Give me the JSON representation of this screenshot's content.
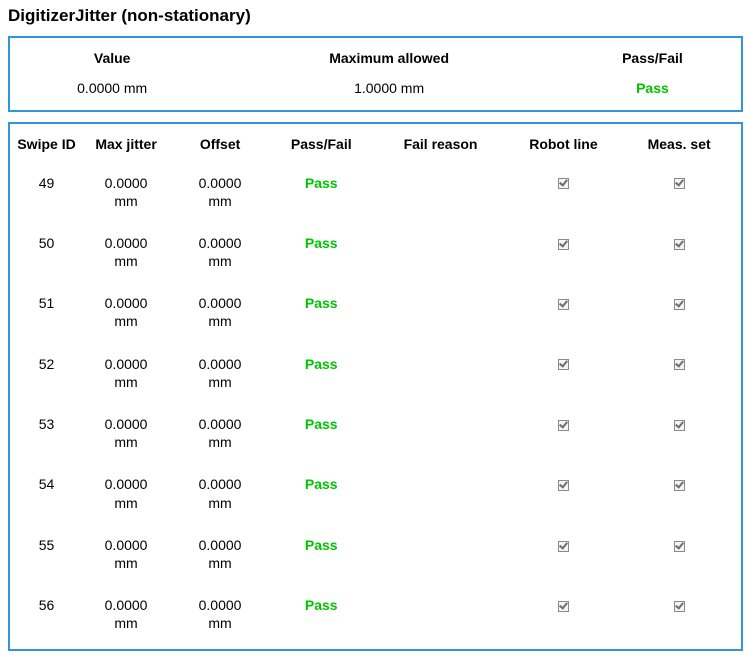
{
  "title": "DigitizerJitter (non-stationary)",
  "summary": {
    "headers": {
      "value": "Value",
      "max": "Maximum allowed",
      "pf": "Pass/Fail"
    },
    "value": "0.0000 mm",
    "max": "1.0000 mm",
    "pf": "Pass"
  },
  "columns": {
    "swipe_id": "Swipe ID",
    "max_jitter": "Max jitter",
    "offset": "Offset",
    "pass_fail": "Pass/Fail",
    "fail_reason": "Fail reason",
    "robot_line": "Robot line",
    "meas_set": "Meas. set"
  },
  "rows": [
    {
      "swipe_id": "49",
      "max_jitter": "0.0000 mm",
      "offset": "0.0000 mm",
      "pass_fail": "Pass",
      "fail_reason": "",
      "robot_line": true,
      "meas_set": true
    },
    {
      "swipe_id": "50",
      "max_jitter": "0.0000 mm",
      "offset": "0.0000 mm",
      "pass_fail": "Pass",
      "fail_reason": "",
      "robot_line": true,
      "meas_set": true
    },
    {
      "swipe_id": "51",
      "max_jitter": "0.0000 mm",
      "offset": "0.0000 mm",
      "pass_fail": "Pass",
      "fail_reason": "",
      "robot_line": true,
      "meas_set": true
    },
    {
      "swipe_id": "52",
      "max_jitter": "0.0000 mm",
      "offset": "0.0000 mm",
      "pass_fail": "Pass",
      "fail_reason": "",
      "robot_line": true,
      "meas_set": true
    },
    {
      "swipe_id": "53",
      "max_jitter": "0.0000 mm",
      "offset": "0.0000 mm",
      "pass_fail": "Pass",
      "fail_reason": "",
      "robot_line": true,
      "meas_set": true
    },
    {
      "swipe_id": "54",
      "max_jitter": "0.0000 mm",
      "offset": "0.0000 mm",
      "pass_fail": "Pass",
      "fail_reason": "",
      "robot_line": true,
      "meas_set": true
    },
    {
      "swipe_id": "55",
      "max_jitter": "0.0000 mm",
      "offset": "0.0000 mm",
      "pass_fail": "Pass",
      "fail_reason": "",
      "robot_line": true,
      "meas_set": true
    },
    {
      "swipe_id": "56",
      "max_jitter": "0.0000 mm",
      "offset": "0.0000 mm",
      "pass_fail": "Pass",
      "fail_reason": "",
      "robot_line": true,
      "meas_set": true
    }
  ],
  "colors": {
    "border": "#2f97d8",
    "pass_text": "#00c400",
    "background": "#ffffff"
  }
}
